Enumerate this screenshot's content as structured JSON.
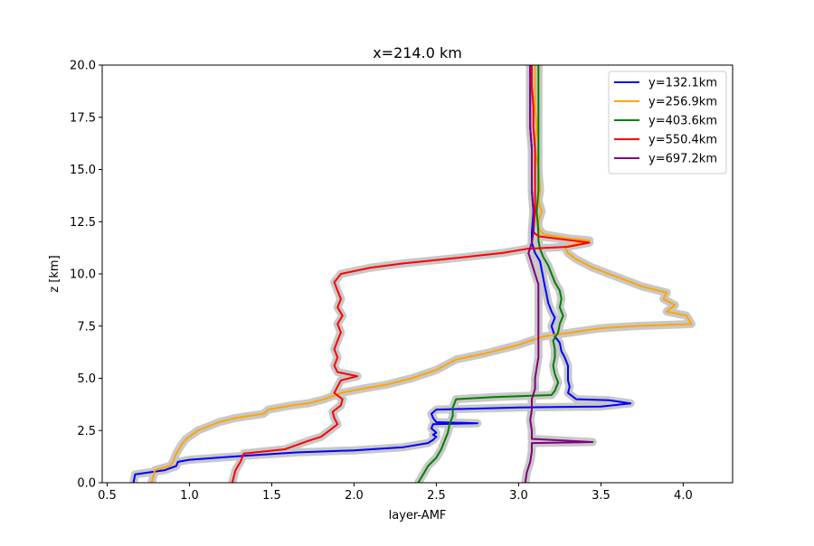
{
  "chart_data": {
    "type": "line",
    "title": "x=214.0 km",
    "xlabel": "layer-AMF",
    "ylabel": "z [km]",
    "xlim": [
      0.47,
      4.3
    ],
    "ylim": [
      0,
      20
    ],
    "xticks": [
      0.5,
      1.0,
      1.5,
      2.0,
      2.5,
      3.0,
      3.5,
      4.0
    ],
    "xtick_labels": [
      "0.5",
      "1.0",
      "1.5",
      "2.0",
      "2.5",
      "3.0",
      "3.5",
      "4.0"
    ],
    "yticks": [
      0,
      2.5,
      5,
      7.5,
      10,
      12.5,
      15,
      17.5,
      20
    ],
    "ytick_labels": [
      "0.0",
      "2.5",
      "5.0",
      "7.5",
      "10.0",
      "12.5",
      "15.0",
      "17.5",
      "20.0"
    ],
    "grid": false,
    "legend_position": "top-right",
    "uncertainty_band_color": "#c8c8c8",
    "series": [
      {
        "name": "y=132.1km",
        "color": "#0000ff",
        "points": [
          [
            0.66,
            0.0
          ],
          [
            0.67,
            0.4
          ],
          [
            0.85,
            0.6
          ],
          [
            0.92,
            0.8
          ],
          [
            0.93,
            1.0
          ],
          [
            1.0,
            1.1
          ],
          [
            1.35,
            1.3
          ],
          [
            1.65,
            1.45
          ],
          [
            2.0,
            1.55
          ],
          [
            2.3,
            1.7
          ],
          [
            2.45,
            1.9
          ],
          [
            2.48,
            2.05
          ],
          [
            2.5,
            2.2
          ],
          [
            2.48,
            2.3
          ],
          [
            2.5,
            2.4
          ],
          [
            2.47,
            2.6
          ],
          [
            2.48,
            2.8
          ],
          [
            2.75,
            2.85
          ],
          [
            2.5,
            2.9
          ],
          [
            2.48,
            3.1
          ],
          [
            2.47,
            3.3
          ],
          [
            2.5,
            3.5
          ],
          [
            3.0,
            3.6
          ],
          [
            3.5,
            3.65
          ],
          [
            3.68,
            3.8
          ],
          [
            3.55,
            3.95
          ],
          [
            3.35,
            4.0
          ],
          [
            3.3,
            4.3
          ],
          [
            3.31,
            4.6
          ],
          [
            3.3,
            4.9
          ],
          [
            3.3,
            5.2
          ],
          [
            3.3,
            5.6
          ],
          [
            3.28,
            6.0
          ],
          [
            3.26,
            6.3
          ],
          [
            3.25,
            6.7
          ],
          [
            3.22,
            7.0
          ],
          [
            3.2,
            7.5
          ],
          [
            3.22,
            7.9
          ],
          [
            3.2,
            8.2
          ],
          [
            3.18,
            8.6
          ],
          [
            3.17,
            9.0
          ],
          [
            3.16,
            9.4
          ],
          [
            3.15,
            9.8
          ],
          [
            3.14,
            10.2
          ],
          [
            3.13,
            10.6
          ],
          [
            3.1,
            11.0
          ],
          [
            3.08,
            11.5
          ],
          [
            3.08,
            12.0
          ],
          [
            3.09,
            13.0
          ],
          [
            3.08,
            14.0
          ],
          [
            3.08,
            15.0
          ],
          [
            3.08,
            16.0
          ],
          [
            3.07,
            17.0
          ],
          [
            3.07,
            18.0
          ],
          [
            3.07,
            19.0
          ],
          [
            3.07,
            20.0
          ]
        ]
      },
      {
        "name": "y=256.9km",
        "color": "#ffa500",
        "points": [
          [
            0.77,
            0.0
          ],
          [
            0.79,
            0.6
          ],
          [
            0.88,
            0.8
          ],
          [
            0.9,
            1.0
          ],
          [
            0.92,
            1.4
          ],
          [
            0.95,
            1.8
          ],
          [
            0.98,
            2.1
          ],
          [
            1.05,
            2.5
          ],
          [
            1.18,
            2.9
          ],
          [
            1.28,
            3.1
          ],
          [
            1.45,
            3.3
          ],
          [
            1.48,
            3.5
          ],
          [
            1.62,
            3.7
          ],
          [
            1.72,
            3.8
          ],
          [
            1.82,
            4.0
          ],
          [
            1.92,
            4.3
          ],
          [
            2.05,
            4.5
          ],
          [
            2.2,
            4.7
          ],
          [
            2.35,
            5.0
          ],
          [
            2.5,
            5.4
          ],
          [
            2.62,
            5.9
          ],
          [
            2.8,
            6.2
          ],
          [
            3.0,
            6.6
          ],
          [
            3.15,
            7.0
          ],
          [
            3.5,
            7.4
          ],
          [
            3.7,
            7.5
          ],
          [
            4.05,
            7.6
          ],
          [
            4.02,
            8.0
          ],
          [
            3.9,
            8.2
          ],
          [
            3.95,
            8.5
          ],
          [
            3.88,
            8.8
          ],
          [
            3.9,
            9.1
          ],
          [
            3.75,
            9.4
          ],
          [
            3.65,
            9.7
          ],
          [
            3.55,
            10.0
          ],
          [
            3.45,
            10.3
          ],
          [
            3.35,
            10.7
          ],
          [
            3.3,
            11.0
          ],
          [
            3.28,
            11.3
          ],
          [
            3.43,
            11.6
          ],
          [
            3.3,
            11.7
          ],
          [
            3.15,
            11.9
          ],
          [
            3.12,
            12.2
          ],
          [
            3.12,
            12.5
          ],
          [
            3.14,
            13.0
          ],
          [
            3.12,
            13.5
          ],
          [
            3.13,
            14.0
          ],
          [
            3.12,
            15.0
          ],
          [
            3.1,
            16.0
          ],
          [
            3.11,
            17.0
          ],
          [
            3.1,
            18.0
          ],
          [
            3.1,
            19.0
          ],
          [
            3.1,
            20.0
          ]
        ]
      },
      {
        "name": "y=403.6km",
        "color": "#008000",
        "points": [
          [
            2.39,
            0.0
          ],
          [
            2.42,
            0.4
          ],
          [
            2.45,
            0.8
          ],
          [
            2.5,
            1.2
          ],
          [
            2.53,
            1.6
          ],
          [
            2.55,
            2.0
          ],
          [
            2.57,
            2.4
          ],
          [
            2.58,
            2.8
          ],
          [
            2.6,
            3.2
          ],
          [
            2.6,
            3.6
          ],
          [
            2.62,
            4.0
          ],
          [
            2.85,
            4.1
          ],
          [
            3.2,
            4.2
          ],
          [
            3.22,
            4.4
          ],
          [
            3.24,
            4.8
          ],
          [
            3.22,
            5.2
          ],
          [
            3.21,
            5.6
          ],
          [
            3.22,
            6.0
          ],
          [
            3.22,
            6.4
          ],
          [
            3.21,
            6.8
          ],
          [
            3.24,
            7.2
          ],
          [
            3.25,
            7.6
          ],
          [
            3.27,
            8.0
          ],
          [
            3.25,
            8.4
          ],
          [
            3.26,
            8.8
          ],
          [
            3.25,
            9.2
          ],
          [
            3.22,
            9.6
          ],
          [
            3.2,
            10.0
          ],
          [
            3.18,
            10.4
          ],
          [
            3.15,
            10.8
          ],
          [
            3.13,
            11.2
          ],
          [
            3.12,
            11.6
          ],
          [
            3.12,
            12.0
          ],
          [
            3.11,
            13.0
          ],
          [
            3.12,
            14.0
          ],
          [
            3.12,
            15.0
          ],
          [
            3.12,
            16.0
          ],
          [
            3.12,
            17.0
          ],
          [
            3.12,
            18.0
          ],
          [
            3.12,
            19.0
          ],
          [
            3.12,
            20.0
          ]
        ]
      },
      {
        "name": "y=550.4km",
        "color": "#ff0000",
        "points": [
          [
            1.26,
            0.0
          ],
          [
            1.28,
            0.6
          ],
          [
            1.31,
            1.0
          ],
          [
            1.33,
            1.4
          ],
          [
            1.58,
            1.6
          ],
          [
            1.65,
            1.8
          ],
          [
            1.72,
            2.0
          ],
          [
            1.8,
            2.2
          ],
          [
            1.85,
            2.5
          ],
          [
            1.9,
            2.8
          ],
          [
            1.88,
            3.1
          ],
          [
            1.87,
            3.4
          ],
          [
            1.92,
            3.7
          ],
          [
            1.93,
            4.0
          ],
          [
            1.88,
            4.3
          ],
          [
            1.9,
            4.6
          ],
          [
            1.92,
            4.9
          ],
          [
            2.02,
            5.1
          ],
          [
            1.9,
            5.3
          ],
          [
            1.88,
            5.6
          ],
          [
            1.9,
            6.0
          ],
          [
            1.88,
            6.4
          ],
          [
            1.9,
            6.8
          ],
          [
            1.92,
            7.2
          ],
          [
            1.9,
            7.6
          ],
          [
            1.93,
            8.0
          ],
          [
            1.9,
            8.4
          ],
          [
            1.92,
            8.8
          ],
          [
            1.9,
            9.2
          ],
          [
            1.88,
            9.6
          ],
          [
            1.92,
            10.0
          ],
          [
            2.1,
            10.3
          ],
          [
            2.3,
            10.5
          ],
          [
            2.55,
            10.7
          ],
          [
            2.9,
            11.0
          ],
          [
            3.05,
            11.2
          ],
          [
            3.3,
            11.3
          ],
          [
            3.43,
            11.5
          ],
          [
            3.12,
            11.8
          ],
          [
            3.09,
            12.0
          ],
          [
            3.1,
            13.0
          ],
          [
            3.1,
            14.0
          ],
          [
            3.1,
            15.0
          ],
          [
            3.1,
            16.0
          ],
          [
            3.09,
            17.0
          ],
          [
            3.09,
            18.0
          ],
          [
            3.08,
            19.0
          ],
          [
            3.08,
            20.0
          ]
        ]
      },
      {
        "name": "y=697.2km",
        "color": "#800080",
        "points": [
          [
            3.04,
            0.0
          ],
          [
            3.05,
            0.5
          ],
          [
            3.07,
            1.0
          ],
          [
            3.08,
            1.5
          ],
          [
            3.08,
            1.9
          ],
          [
            3.45,
            1.95
          ],
          [
            3.08,
            2.1
          ],
          [
            3.08,
            2.5
          ],
          [
            3.07,
            3.0
          ],
          [
            3.08,
            3.5
          ],
          [
            3.08,
            4.0
          ],
          [
            3.1,
            4.5
          ],
          [
            3.1,
            5.0
          ],
          [
            3.11,
            5.5
          ],
          [
            3.12,
            6.0
          ],
          [
            3.12,
            6.5
          ],
          [
            3.12,
            7.0
          ],
          [
            3.12,
            7.5
          ],
          [
            3.12,
            8.0
          ],
          [
            3.12,
            8.5
          ],
          [
            3.12,
            9.0
          ],
          [
            3.12,
            9.5
          ],
          [
            3.1,
            10.0
          ],
          [
            3.08,
            10.5
          ],
          [
            3.06,
            11.0
          ],
          [
            3.08,
            11.5
          ],
          [
            3.09,
            12.0
          ],
          [
            3.09,
            13.0
          ],
          [
            3.08,
            14.0
          ],
          [
            3.08,
            15.0
          ],
          [
            3.08,
            16.0
          ],
          [
            3.07,
            17.0
          ],
          [
            3.07,
            18.0
          ],
          [
            3.07,
            19.0
          ],
          [
            3.07,
            20.0
          ]
        ]
      }
    ]
  }
}
